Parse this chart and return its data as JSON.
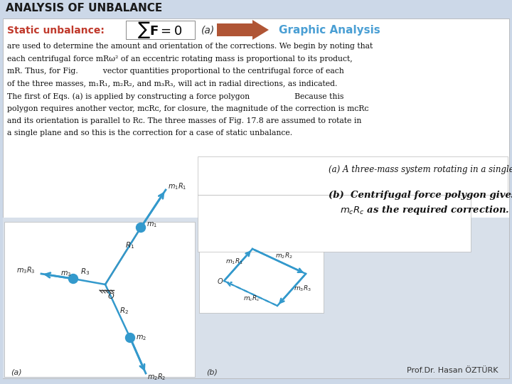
{
  "title": "ANALYSIS OF UNBALANCE",
  "title_color": "#1a1a1a",
  "title_fontsize": 11,
  "subtitle_label": "Static unbalance:",
  "subtitle_color": "#c0392b",
  "subtitle_fontsize": 10,
  "graphic_analysis_label": "Graphic Analysis",
  "graphic_analysis_color": "#4a9fd4",
  "author_label": "Prof.Dr. Hasan ÖZTÜRK",
  "background_color": "#ccd8e8",
  "content_bg": "#f0f0f0",
  "header_bg": "#ccd8e8",
  "white_box_bg": "#ffffff",
  "arrow_color": "#b05535",
  "body_color": "#111111",
  "vector_color": "#3399cc",
  "body_lines": [
    "are used to determine the amount and orientation of the corrections. We begin by noting that",
    "each centrifugal force mRω² of an eccentric rotating mass is proportional to its product,",
    "mR. Thus, for Fig.          vector quantities proportional to the centrifugal force of each",
    "of the three masses, m₁R₁, m₂R₂, and m₃R₃, will act in radial directions, as indicated.",
    "The first of Eqs. (a) is applied by constructing a force polygon                  Because this",
    "polygon requires another vector, mᴄRᴄ, for closure, the magnitude of the correction is mᴄRᴄ",
    "and its orientation is parallel to Rᴄ. The three masses of Fig. 17.8 are assumed to rotate in",
    "a single plane and so this is the correction for a case of static unbalance."
  ],
  "fig_a_caption": "(a) A three-mass system rotating in a single plane.",
  "fig_b_line1": "(b)  Centrifugal force polygon gives",
  "fig_b_line2": "mᴄRᴄ as the required correction.",
  "fig_a_label": "(a)",
  "fig_b_label": "(b)"
}
